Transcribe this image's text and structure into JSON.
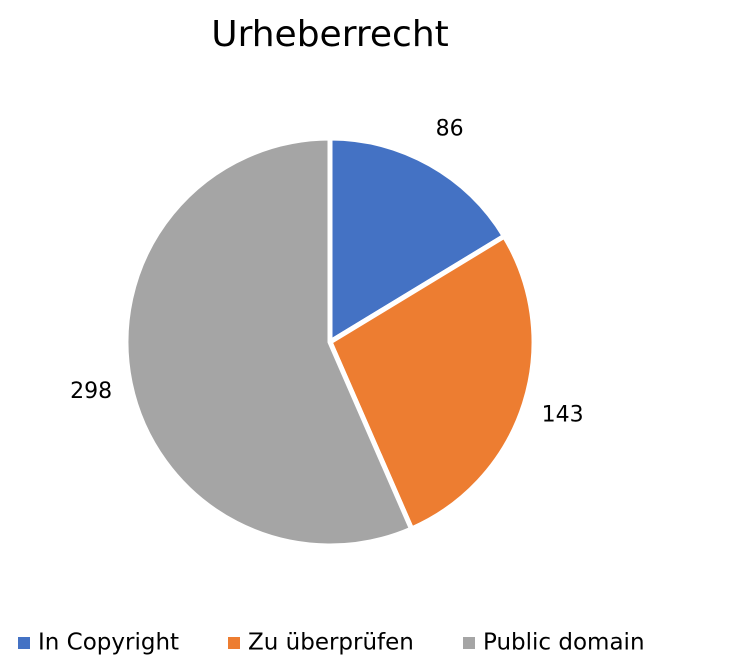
{
  "chart_data": {
    "type": "pie",
    "title": "Urheberrecht",
    "categories": [
      "In Copyright",
      "Zu überprüfen",
      "Public domain"
    ],
    "values": [
      86,
      143,
      298
    ],
    "colors": [
      "#4472c4",
      "#ed7d31",
      "#a5a5a5"
    ],
    "legend": "bottom"
  }
}
